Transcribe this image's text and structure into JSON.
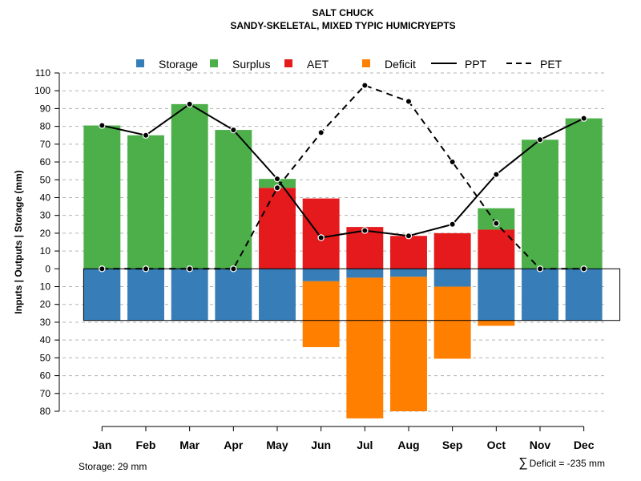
{
  "chart_data": {
    "type": "bar",
    "title": "SALT CHUCK",
    "subtitle": "SANDY-SKELETAL, MIXED TYPIC HUMICRYEPTS",
    "ylabel": "Inputs | Outputs | Storage    (mm)",
    "categories": [
      "Jan",
      "Feb",
      "Mar",
      "Apr",
      "May",
      "Jun",
      "Jul",
      "Aug",
      "Sep",
      "Oct",
      "Nov",
      "Dec"
    ],
    "ylim": [
      -80,
      110
    ],
    "yticks": [
      {
        "value": 110,
        "label": "110"
      },
      {
        "value": 100,
        "label": "100"
      },
      {
        "value": 90,
        "label": "90"
      },
      {
        "value": 80,
        "label": "80"
      },
      {
        "value": 70,
        "label": "70"
      },
      {
        "value": 60,
        "label": "60"
      },
      {
        "value": 50,
        "label": "50"
      },
      {
        "value": 40,
        "label": "40"
      },
      {
        "value": 30,
        "label": "30"
      },
      {
        "value": 20,
        "label": "20"
      },
      {
        "value": 10,
        "label": "10"
      },
      {
        "value": 0,
        "label": "0"
      },
      {
        "value": -10,
        "label": "10"
      },
      {
        "value": -20,
        "label": "20"
      },
      {
        "value": -30,
        "label": "30"
      },
      {
        "value": -40,
        "label": "40"
      },
      {
        "value": -50,
        "label": "50"
      },
      {
        "value": -60,
        "label": "60"
      },
      {
        "value": -70,
        "label": "70"
      },
      {
        "value": -80,
        "label": "80"
      }
    ],
    "legend": [
      {
        "name": "Storage",
        "kind": "box",
        "color": "#377EB8"
      },
      {
        "name": "Surplus",
        "kind": "box",
        "color": "#4DAF4A"
      },
      {
        "name": "AET",
        "kind": "box",
        "color": "#E41A1C"
      },
      {
        "name": "Deficit",
        "kind": "box",
        "color": "#FF7F00"
      },
      {
        "name": "PPT",
        "kind": "solid",
        "color": "#000000"
      },
      {
        "name": "PET",
        "kind": "dashed",
        "color": "#000000"
      }
    ],
    "series": [
      {
        "name": "Storage",
        "color": "#377EB8",
        "values": [
          29,
          29,
          29,
          29,
          29,
          7,
          5,
          4.5,
          10,
          29,
          29,
          29
        ]
      },
      {
        "name": "Surplus",
        "color": "#4DAF4A",
        "values": [
          80.5,
          75,
          92.5,
          78,
          5,
          0,
          0,
          0,
          0,
          12,
          72.5,
          84.5
        ]
      },
      {
        "name": "AET",
        "color": "#E41A1C",
        "values": [
          0,
          0,
          0,
          0,
          45.5,
          39.5,
          23.5,
          18.5,
          20,
          22,
          0,
          0
        ]
      },
      {
        "name": "Deficit",
        "color": "#FF7F00",
        "values": [
          0,
          0,
          0,
          0,
          0,
          37,
          79,
          75.5,
          40.5,
          3,
          0,
          0
        ]
      },
      {
        "name": "PPT",
        "color": "#000000",
        "values": [
          80.5,
          75,
          92.5,
          78,
          50.5,
          17.5,
          21.5,
          18.5,
          25,
          53,
          72.5,
          84.5
        ]
      },
      {
        "name": "PET",
        "color": "#000000",
        "values": [
          0,
          0,
          0,
          0,
          45.5,
          76.5,
          103,
          94,
          60,
          25.5,
          0,
          0
        ]
      }
    ],
    "storage_capacity": 29,
    "footer_left": "Storage: 29 mm",
    "footer_right_symbol": "∑",
    "footer_right": "Deficit = -235 mm",
    "grid": "horizontal dashed"
  }
}
